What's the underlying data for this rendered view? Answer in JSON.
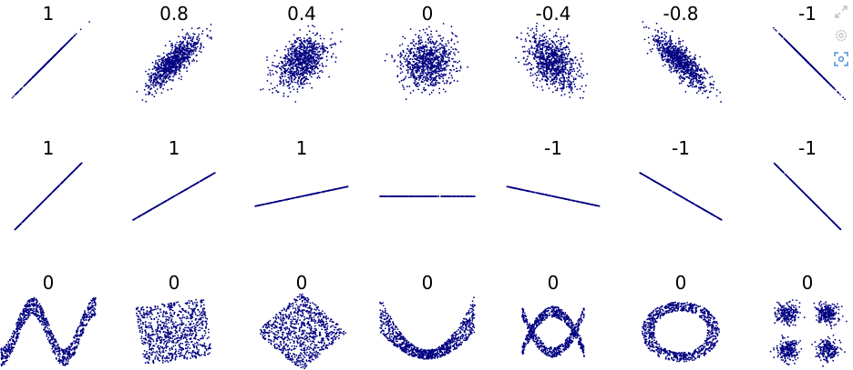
{
  "chart_data": {
    "type": "scatter",
    "point_color": "#000080",
    "rows": [
      {
        "kind": "linear_noise",
        "panels": [
          {
            "correlation": 1,
            "title": "1"
          },
          {
            "correlation": 0.8,
            "title": "0.8"
          },
          {
            "correlation": 0.4,
            "title": "0.4"
          },
          {
            "correlation": 0,
            "title": "0"
          },
          {
            "correlation": -0.4,
            "title": "-0.4"
          },
          {
            "correlation": -0.8,
            "title": "-0.8"
          },
          {
            "correlation": -1,
            "title": "-1"
          }
        ]
      },
      {
        "kind": "linear_slope",
        "panels": [
          {
            "slope_deg": 45,
            "title": "1"
          },
          {
            "slope_deg": 30,
            "title": "1"
          },
          {
            "slope_deg": 12,
            "title": "1"
          },
          {
            "slope_deg": 0,
            "title": ""
          },
          {
            "slope_deg": -12,
            "title": "-1"
          },
          {
            "slope_deg": -30,
            "title": "-1"
          },
          {
            "slope_deg": -45,
            "title": "-1"
          }
        ]
      },
      {
        "kind": "nonlinear",
        "panels": [
          {
            "shape": "wave",
            "title": "0"
          },
          {
            "shape": "rotated_square",
            "title": "0"
          },
          {
            "shape": "diamond",
            "title": "0"
          },
          {
            "shape": "parabola",
            "title": "0"
          },
          {
            "shape": "cross_parabolas",
            "title": "0"
          },
          {
            "shape": "ring",
            "title": "0"
          },
          {
            "shape": "four_clusters",
            "title": "0"
          }
        ]
      }
    ]
  },
  "toolbar": {
    "icons": [
      "expand-icon",
      "settings-icon",
      "screenshot-icon"
    ]
  }
}
